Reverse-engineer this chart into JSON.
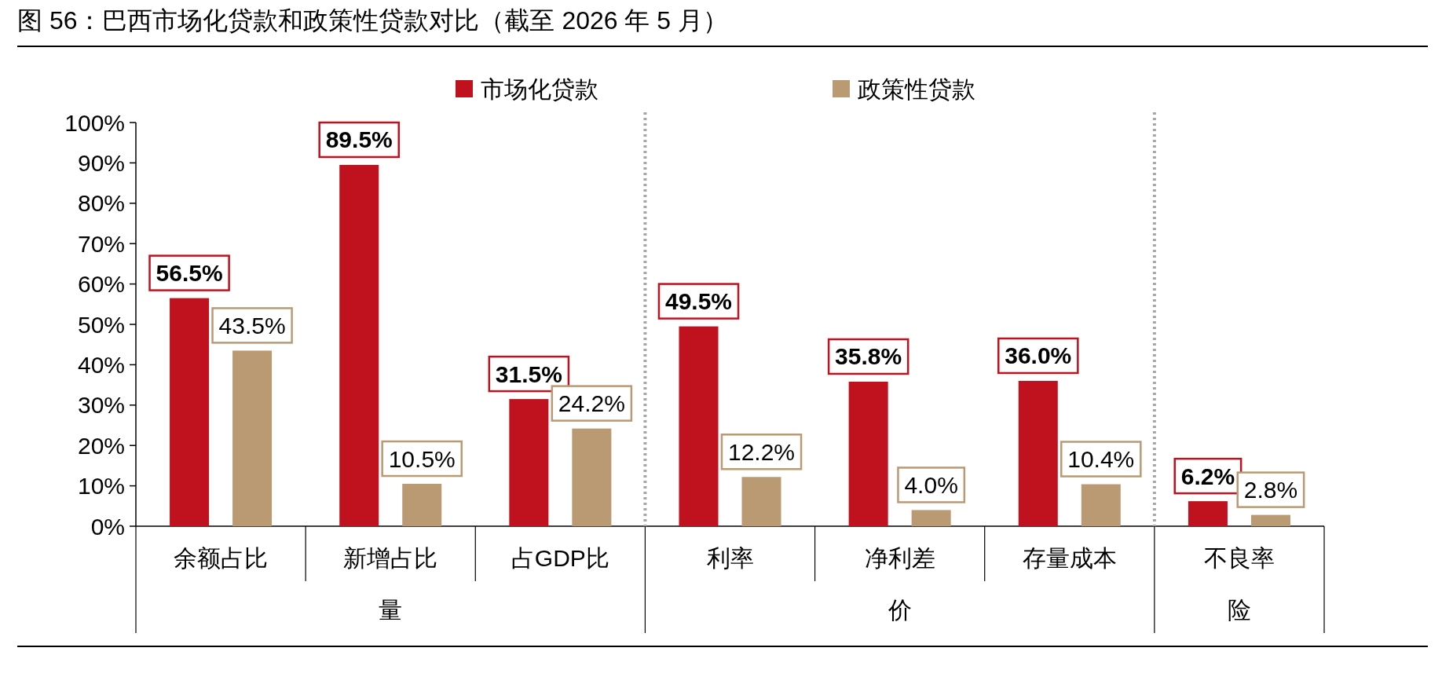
{
  "chart_data": {
    "type": "bar",
    "title": "图 56：巴西市场化贷款和政策性贷款对比（截至 2026 年 5 月）",
    "categories": [
      "余额占比",
      "新增占比",
      "占GDP比",
      "利率",
      "净利差",
      "存量成本",
      "不良率"
    ],
    "series": [
      {
        "name": "市场化贷款",
        "color": "#c0111f",
        "values": [
          56.5,
          89.5,
          31.5,
          49.5,
          35.8,
          36.0,
          6.2
        ],
        "value_labels": [
          "56.5%",
          "89.5%",
          "31.5%",
          "49.5%",
          "35.8%",
          "36.0%",
          "6.2%"
        ]
      },
      {
        "name": "政策性贷款",
        "color": "#b99a72",
        "values": [
          43.5,
          10.5,
          24.2,
          12.2,
          4.0,
          10.4,
          2.8
        ],
        "value_labels": [
          "43.5%",
          "10.5%",
          "24.2%",
          "12.2%",
          "4.0%",
          "10.4%",
          "2.8%"
        ]
      }
    ],
    "ylim": [
      0,
      100
    ],
    "yticks": [
      {
        "value": 0,
        "label": "0%"
      },
      {
        "value": 10,
        "label": "10%"
      },
      {
        "value": 20,
        "label": "20%"
      },
      {
        "value": 30,
        "label": "30%"
      },
      {
        "value": 40,
        "label": "40%"
      },
      {
        "value": 50,
        "label": "50%"
      },
      {
        "value": 60,
        "label": "60%"
      },
      {
        "value": 70,
        "label": "70%"
      },
      {
        "value": 80,
        "label": "80%"
      },
      {
        "value": 90,
        "label": "90%"
      },
      {
        "value": 100,
        "label": "100%"
      }
    ],
    "annotations": [
      "量",
      "价",
      "险"
    ],
    "legend": "top"
  }
}
